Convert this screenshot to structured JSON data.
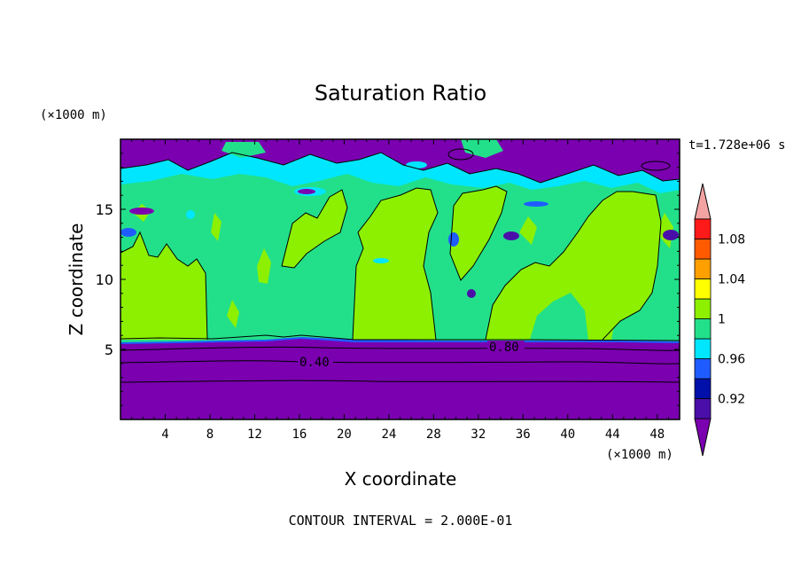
{
  "chart_data": {
    "type": "heatmap",
    "title": "Saturation Ratio",
    "xlabel": "X coordinate",
    "ylabel": "Z coordinate",
    "x_unit": "(×1000 m)",
    "y_unit": "(×1000 m)",
    "time_label": "t=1.728e+06 s",
    "footer": "CONTOUR INTERVAL = 2.000E-01",
    "xlim": [
      0,
      50
    ],
    "ylim": [
      0,
      20
    ],
    "x_ticks": [
      4,
      8,
      12,
      16,
      20,
      24,
      28,
      32,
      36,
      40,
      44,
      48
    ],
    "y_ticks": [
      5,
      10,
      15
    ],
    "x_tick_labels": [
      "4",
      "8",
      "12",
      "16",
      "20",
      "24",
      "28",
      "32",
      "36",
      "40",
      "44",
      "48"
    ],
    "y_tick_labels": [
      "5",
      "10",
      "15"
    ],
    "contour_labels": [
      {
        "text": "0.40",
        "x": 17.2,
        "y": 4.0
      },
      {
        "text": "0.80",
        "x": 34.0,
        "y": 5.2
      }
    ],
    "colorbar": {
      "bins": [
        {
          "range": "<0.90",
          "color": "#7a00b0"
        },
        {
          "range": "0.90-0.92",
          "color": "#4a0fa8"
        },
        {
          "range": "0.92-0.94",
          "color": "#0010a8"
        },
        {
          "range": "0.94-0.96",
          "color": "#1f5cff"
        },
        {
          "range": "0.96-0.98",
          "color": "#00e6ff"
        },
        {
          "range": "0.98-1.00",
          "color": "#22e08a"
        },
        {
          "range": "1.00-1.02",
          "color": "#8cf000"
        },
        {
          "range": "1.02-1.04",
          "color": "#ffff00"
        },
        {
          "range": "1.04-1.06",
          "color": "#ffa000"
        },
        {
          "range": "1.06-1.08",
          "color": "#ff5a00"
        },
        {
          "range": "1.08-1.10",
          "color": "#ff1a1a"
        },
        {
          "range": ">1.10",
          "color": "#f4a3a3"
        }
      ],
      "labels": [
        "0.92",
        "0.96",
        "1",
        "1.04",
        "1.08"
      ]
    },
    "regions": {
      "low_level_value": "0.4–0.9",
      "mid_level_value": "0.98–1.02",
      "upper_level_value": "<0.96"
    },
    "colors": {
      "violet": "#7a00b0",
      "cyan": "#00e6ff",
      "green": "#22e08a",
      "lime": "#8cf000",
      "blue": "#1f5cff"
    }
  }
}
